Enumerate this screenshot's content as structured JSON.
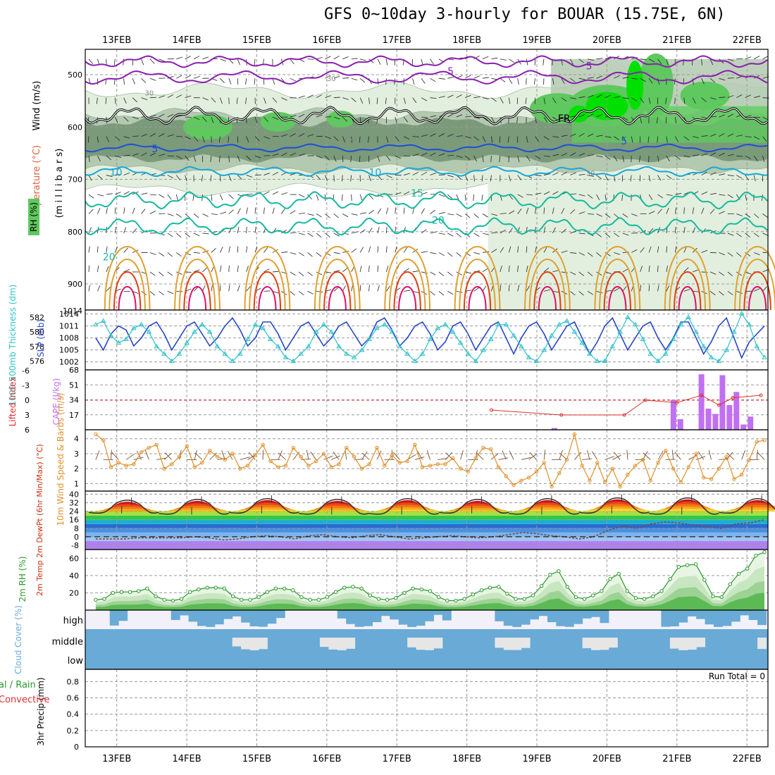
{
  "title": "GFS 0~10day 3-hourly for BOUAR (15.75E, 6N)",
  "dates": [
    "13FEB",
    "14FEB",
    "15FEB",
    "16FEB",
    "17FEB",
    "18FEB",
    "19FEB",
    "20FEB",
    "21FEB",
    "22FEB"
  ],
  "colors": {
    "rh_light": "#e2efde",
    "rh_mid": "#b3c9b0",
    "rh_dark": "#7a9a7a",
    "rh_green": "#5fc85f",
    "rh_bright": "#00e000",
    "temp_purple": "#8a1fb0",
    "temp_blue": "#1e4fd6",
    "temp_cyan": "#1aa6d8",
    "temp_teal": "#16b8a0",
    "temp_orange": "#e0a030",
    "temp_red": "#e04010",
    "temp_magenta": "#e0106a",
    "slp": "#2846c8",
    "thick": "#2ec2c8",
    "li": "#e03030",
    "cape": "#c070f0",
    "wind": "#e0902a",
    "barb": "#7a5030",
    "rh2": "#2a9a2a",
    "cloud": "#6aaad6",
    "cloud_bg": "#f2f0f8"
  },
  "chart_data": [
    {
      "type": "area",
      "panel": "upper-air",
      "ylabel_parts": [
        "Wind (m/s)",
        "Temperature (°C)",
        "(m i l l i b a r s)",
        "RH (%)"
      ],
      "yticks": [
        500,
        600,
        700,
        800,
        900
      ],
      "ylim": [
        1014,
        445
      ],
      "contour_labels": [
        {
          "text": "5",
          "color": "purple"
        },
        {
          "text": "5",
          "color": "purple"
        },
        {
          "text": "FR",
          "color": "black"
        },
        {
          "text": "5",
          "color": "blue"
        },
        {
          "text": "5",
          "color": "blue"
        },
        {
          "text": "10",
          "color": "cyan"
        },
        {
          "text": "10",
          "color": "cyan"
        },
        {
          "text": "15",
          "color": "teal"
        },
        {
          "text": "20",
          "color": "teal"
        },
        {
          "text": "20",
          "color": "teal"
        },
        {
          "text": "30",
          "color": "gray"
        },
        {
          "text": "30",
          "color": "gray"
        },
        {
          "text": "30",
          "color": "gray"
        },
        {
          "text": "50",
          "color": "gray"
        }
      ]
    },
    {
      "type": "line",
      "panel": "slp-thickness",
      "ylabel": "SLP (mb)",
      "ylabel2": "1000-500mb Thickness (dm)",
      "yticks_slp": [
        1002,
        1005,
        1008,
        1011,
        1014
      ],
      "yticks_thk": [
        576,
        578,
        580,
        582
      ],
      "series": [
        {
          "name": "SLP",
          "values": [
            1008,
            1005,
            1009,
            1011,
            1010,
            1006,
            1008,
            1011,
            1012,
            1009,
            1005,
            1008,
            1011,
            1012,
            1009,
            1006,
            1008,
            1011,
            1013,
            1010,
            1006,
            1008,
            1012,
            1012,
            1009,
            1005,
            1008,
            1011,
            1012,
            1009,
            1006,
            1008,
            1011,
            1012,
            1009,
            1006,
            1008,
            1012,
            1013,
            1010,
            1006,
            1008,
            1011,
            1012,
            1009,
            1005,
            1007,
            1011,
            1012,
            1009,
            1005,
            1008,
            1011,
            1012,
            1008,
            1004,
            1008,
            1011,
            1012,
            1009,
            1005,
            1008,
            1011,
            1012,
            1008,
            1004,
            1007,
            1011,
            1013,
            1009,
            1005,
            1008,
            1011,
            1012,
            1008,
            1005,
            1008,
            1012,
            1012,
            1008,
            1004,
            1007,
            1011,
            1013,
            1008,
            1003,
            1007,
            1009,
            1011
          ]
        },
        {
          "name": "Thickness",
          "values": [
            581,
            581.5,
            579.5,
            578.5,
            579,
            580.5,
            581,
            580,
            578,
            577,
            576,
            577,
            578.5,
            580,
            581,
            580,
            578,
            577,
            576,
            577,
            579,
            581,
            580.5,
            579,
            578,
            576.5,
            576,
            577,
            578,
            580,
            581,
            580,
            578,
            577,
            576.5,
            577.5,
            579,
            580.5,
            581,
            580,
            578,
            577,
            576,
            577,
            579,
            580.5,
            581,
            580,
            578.5,
            577,
            576,
            577.5,
            579,
            581,
            581,
            579.5,
            578,
            576.5,
            576,
            577.5,
            579.5,
            581,
            581.5,
            580,
            578.5,
            577,
            576,
            576,
            578,
            580,
            582,
            581,
            579,
            577,
            576,
            577,
            579,
            581,
            582,
            580,
            578,
            576.5,
            576,
            577.5,
            580,
            582.5,
            581,
            578,
            576.5
          ]
        }
      ]
    },
    {
      "type": "bar",
      "panel": "cape-li",
      "ylabel": "Lifted Index",
      "ylabel2": "CAPE (J/kg)",
      "yticks_li": [
        6,
        3,
        0,
        -3,
        -6
      ],
      "yticks_cape": [
        17,
        34,
        51,
        68
      ],
      "ylim": [
        0,
        68
      ],
      "cape_bars": [
        {
          "day": 19.25,
          "value": 2
        },
        {
          "day": 20.95,
          "value": 34
        },
        {
          "day": 21.05,
          "value": 12
        },
        {
          "day": 21.35,
          "value": 63
        },
        {
          "day": 21.45,
          "value": 24
        },
        {
          "day": 21.55,
          "value": 18
        },
        {
          "day": 21.65,
          "value": 62
        },
        {
          "day": 21.75,
          "value": 28
        },
        {
          "day": 21.85,
          "value": 43
        },
        {
          "day": 21.95,
          "value": 6
        },
        {
          "day": 22.05,
          "value": 15
        }
      ],
      "li_line": [
        {
          "day": 18.35,
          "value": 2
        },
        {
          "day": 19.35,
          "value": 3
        },
        {
          "day": 20.25,
          "value": 3
        },
        {
          "day": 20.55,
          "value": 0
        },
        {
          "day": 21.0,
          "value": 0.5
        },
        {
          "day": 21.35,
          "value": -1
        },
        {
          "day": 21.6,
          "value": 1
        },
        {
          "day": 21.8,
          "value": -0.5
        },
        {
          "day": 22.2,
          "value": -1
        }
      ]
    },
    {
      "type": "line",
      "panel": "10m-wind",
      "ylabel": "10m Wind Speed & Barbs (m/s)",
      "yticks": [
        1,
        2,
        3,
        4
      ],
      "ylim": [
        0.5,
        4.6
      ],
      "series": [
        {
          "name": "Speed",
          "values": [
            4.3,
            3.9,
            2.1,
            2.4,
            2.2,
            2.3,
            3.1,
            3.4,
            3.6,
            2.0,
            2.3,
            2.8,
            3.5,
            2.1,
            2.4,
            3.2,
            2.8,
            2.6,
            3.0,
            2.0,
            2.2,
            2.9,
            3.6,
            2.5,
            2.1,
            2.2,
            3.4,
            2.8,
            2.2,
            2.5,
            3.0,
            2.1,
            2.3,
            3.4,
            2.8,
            2.0,
            2.3,
            3.4,
            2.2,
            2.9,
            2.4,
            2.5,
            3.6,
            2.1,
            2.2,
            2.3,
            2.3,
            2.7,
            2.0,
            1.8,
            2.7,
            3.4,
            3.3,
            2.1,
            1.5,
            0.9,
            1.2,
            1.4,
            1.8,
            2.4,
            0.8,
            1.7,
            2.6,
            4.3,
            2.2,
            1.2,
            2.4,
            1.1,
            2.0,
            0.8,
            1.6,
            2.2,
            2.6,
            1.2,
            2.4,
            3.2,
            2.0,
            1.1,
            2.1,
            3.0,
            1.4,
            1.3,
            2.0,
            2.8,
            1.3,
            1.6,
            2.6,
            3.8,
            3.9
          ]
        }
      ]
    },
    {
      "type": "area",
      "panel": "2m-temp",
      "ylabel": "2m Temp 2m DewPt (6hr Min/Max) (°C)",
      "yticks": [
        -8,
        0,
        8,
        16,
        24,
        32,
        40
      ],
      "ylim": [
        -12,
        43
      ],
      "max_by_day": [
        36,
        37,
        38,
        37,
        38,
        37,
        38,
        39,
        39,
        38
      ],
      "min_by_day": [
        21,
        20,
        21,
        20,
        20,
        21,
        20,
        21,
        20,
        21
      ],
      "dewpoint": [
        -2,
        -2,
        -2,
        -1,
        -1,
        -1,
        -1,
        0,
        -1,
        -3,
        -2,
        0,
        1,
        0,
        -2,
        1,
        2,
        0,
        -1,
        1,
        2,
        0,
        -2,
        -1,
        0,
        1,
        0,
        -1,
        0,
        2,
        4,
        3,
        1,
        0,
        -2,
        0,
        6,
        10,
        8,
        12,
        14,
        13,
        11,
        9,
        8,
        12,
        13,
        16
      ]
    },
    {
      "type": "area",
      "panel": "2m-rh",
      "ylabel": "2m RH (%)",
      "yticks": [
        20,
        40,
        60
      ],
      "ylim": [
        0,
        70
      ],
      "series": [
        {
          "name": "RH",
          "values": [
            12,
            13,
            20,
            21,
            21,
            22,
            25,
            16,
            12,
            11,
            13,
            21,
            24,
            26,
            26,
            25,
            16,
            12,
            12,
            15,
            21,
            25,
            25,
            23,
            15,
            12,
            12,
            15,
            21,
            26,
            27,
            25,
            17,
            13,
            12,
            14,
            20,
            25,
            24,
            22,
            15,
            11,
            11,
            13,
            18,
            23,
            26,
            27,
            19,
            13,
            13,
            17,
            28,
            41,
            45,
            27,
            15,
            13,
            17,
            22,
            36,
            42,
            22,
            14,
            13,
            16,
            22,
            36,
            50,
            52,
            53,
            35,
            16,
            15,
            30,
            42,
            48,
            63,
            67
          ]
        }
      ]
    },
    {
      "type": "bar",
      "panel": "cloud-cover",
      "ylabel": "Cloud Cover (%)",
      "layers": [
        "high",
        "middle",
        "low"
      ]
    },
    {
      "type": "bar",
      "panel": "precip",
      "ylabel": "3hr Precip (mm)",
      "ylabel_left": [
        "al / Rain",
        "Convective"
      ],
      "yticks": [
        0,
        0.2,
        0.4,
        0.6,
        0.8
      ],
      "ylim": [
        0,
        0.95
      ],
      "run_total": "Run Total = 0"
    }
  ]
}
